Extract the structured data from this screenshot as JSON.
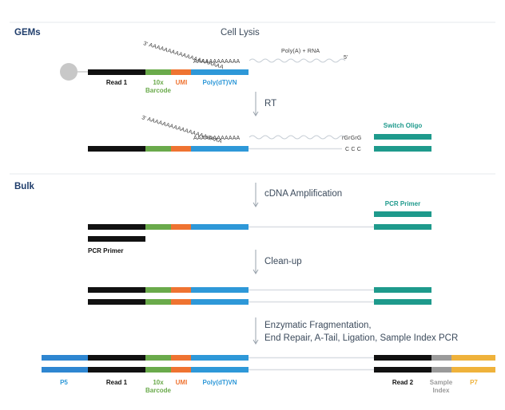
{
  "sections": {
    "gems": "GEMs",
    "bulk": "Bulk"
  },
  "steps": {
    "cell_lysis": "Cell Lysis",
    "rt": "RT",
    "cdna_amplification": "cDNA Amplification",
    "cleanup": "Clean-up",
    "fragmentation_line1": "Enzymatic Fragmentation,",
    "fragmentation_line2": "End Repair, A-Tail, Ligation, Sample Index PCR"
  },
  "labels": {
    "read1": "Read 1",
    "barcode_10x": "10x",
    "barcode": "Barcode",
    "umi": "UMI",
    "polydtvn": "Poly(dT)VN",
    "polya_rna": "Poly(A) + RNA",
    "five_prime": "5'",
    "three_prime": "3'",
    "poly_a_tail": "AAAAAAAAAAAAAAAAAAAA",
    "poly_a_tail_short": "AAAAAAAAAAAA",
    "rgrgrg": "rGrGrG",
    "ccc": "C C C",
    "switch_oligo": "Switch Oligo",
    "pcr_primer": "PCR Primer",
    "p5": "P5",
    "read2": "Read 2",
    "sample": "Sample",
    "index": "Index",
    "p7": "P7"
  },
  "colors": {
    "read1": "#111111",
    "barcode": "#6aaa4b",
    "umi": "#ef7331",
    "polydt": "#2e98d8",
    "teal": "#1e9a8c",
    "p5": "#2e86d1",
    "sample_index": "#9a9a9a",
    "p7": "#efb23b",
    "bead": "#c8c8c8"
  }
}
